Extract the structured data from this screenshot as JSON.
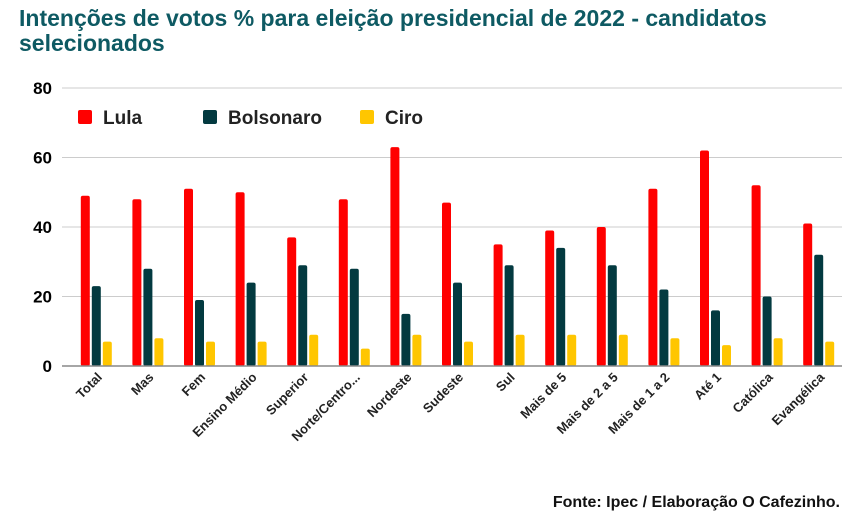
{
  "chart_data": {
    "type": "bar",
    "title": "Intenções de votos % para eleição presidencial de 2022 - candidatos selecionados",
    "xlabel": "",
    "ylabel": "",
    "ylim": [
      0,
      80
    ],
    "yticks": [
      0,
      20,
      40,
      60,
      80
    ],
    "grid": true,
    "legend_position": "top-left",
    "categories": [
      "Total",
      "Mas",
      "Fem",
      "Ensino Médio",
      "Superior",
      "Norte/Centro...",
      "Nordeste",
      "Sudeste",
      "Sul",
      "Mais de 5",
      "Mais de 2 a 5",
      "Mais de 1 a 2",
      "Até 1",
      "Católica",
      "Evangélica"
    ],
    "series": [
      {
        "name": "Lula",
        "color": "#ff0000",
        "values": [
          49,
          48,
          51,
          50,
          37,
          48,
          63,
          47,
          35,
          39,
          40,
          51,
          62,
          52,
          41
        ]
      },
      {
        "name": "Bolsonaro",
        "color": "#033a40",
        "values": [
          23,
          28,
          19,
          24,
          29,
          28,
          15,
          24,
          29,
          34,
          29,
          22,
          16,
          20,
          32
        ]
      },
      {
        "name": "Ciro",
        "color": "#ffc600",
        "values": [
          7,
          8,
          7,
          7,
          9,
          5,
          9,
          7,
          9,
          9,
          9,
          8,
          6,
          8,
          7
        ]
      }
    ]
  },
  "source": "Fonte: Ipec / Elaboração O Cafezinho."
}
